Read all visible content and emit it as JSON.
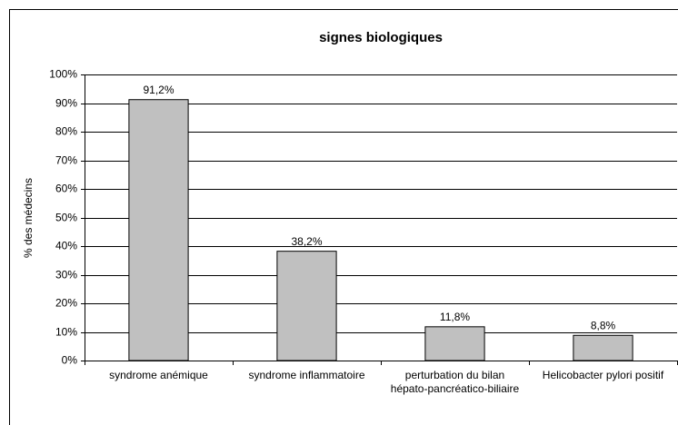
{
  "chart_data": {
    "type": "bar",
    "title": "signes biologiques",
    "y_label": "% des médecins",
    "categories": [
      "syndrome anémique",
      "syndrome inflammatoire",
      "perturbation du bilan hépato-pancréatico-biliaire",
      "Helicobacter pylori positif"
    ],
    "values": [
      91.2,
      38.2,
      11.8,
      8.8
    ],
    "value_labels": [
      "91,2%",
      "38,2%",
      "11,8%",
      "8,8%"
    ],
    "color": "#c0c0c0",
    "ylim": [
      0,
      100
    ],
    "yticks": [
      {
        "value": 0,
        "label": "0%"
      },
      {
        "value": 10,
        "label": "10%"
      },
      {
        "value": 20,
        "label": "20%"
      },
      {
        "value": 30,
        "label": "30%"
      },
      {
        "value": 40,
        "label": "40%"
      },
      {
        "value": 50,
        "label": "50%"
      },
      {
        "value": 60,
        "label": "60%"
      },
      {
        "value": 70,
        "label": "70%"
      },
      {
        "value": 80,
        "label": "80%"
      },
      {
        "value": 90,
        "label": "90%"
      },
      {
        "value": 100,
        "label": "100%"
      }
    ],
    "grid": true
  }
}
